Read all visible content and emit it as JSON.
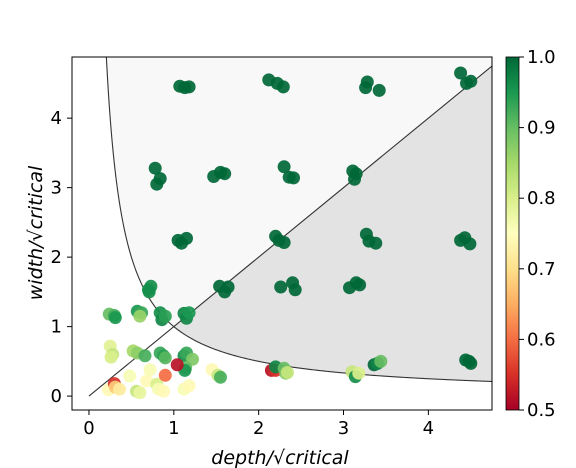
{
  "chart_data": {
    "type": "scatter",
    "title": "",
    "xlabel": "depth/√critical",
    "ylabel": "width/√critical",
    "xlim": [
      -0.2,
      4.75
    ],
    "ylim": [
      -0.2,
      4.88
    ],
    "xticks": [
      0,
      1,
      2,
      3,
      4
    ],
    "yticks": [
      0,
      1,
      2,
      3,
      4
    ],
    "grid": false,
    "colorbar": {
      "colormap": "RdYlGn",
      "range": [
        0.5,
        1.0
      ],
      "ticks": [
        "0.5",
        "0.6",
        "0.7",
        "0.8",
        "0.9",
        "1.0"
      ]
    },
    "reference_curves": [
      {
        "kind": "line",
        "equation": "y = x",
        "color": "#333333"
      },
      {
        "kind": "hyperbola",
        "equation": "y = 1 / x",
        "color": "#333333"
      }
    ],
    "shaded_regions": [
      {
        "region": "above y = 1/x and above y = x",
        "color": "#f8f8f8"
      },
      {
        "region": "above y = 1/x and below y = x",
        "color": "#e3e3e3"
      }
    ],
    "points": [
      {
        "x": 1.07,
        "y": 4.46,
        "v": 1.0
      },
      {
        "x": 1.13,
        "y": 4.44,
        "v": 1.0
      },
      {
        "x": 1.18,
        "y": 4.45,
        "v": 1.0
      },
      {
        "x": 2.12,
        "y": 4.55,
        "v": 1.0
      },
      {
        "x": 2.22,
        "y": 4.5,
        "v": 1.0
      },
      {
        "x": 2.29,
        "y": 4.45,
        "v": 1.0
      },
      {
        "x": 3.28,
        "y": 4.52,
        "v": 1.0
      },
      {
        "x": 3.26,
        "y": 4.44,
        "v": 1.0
      },
      {
        "x": 3.42,
        "y": 4.4,
        "v": 1.0
      },
      {
        "x": 4.38,
        "y": 4.65,
        "v": 1.0
      },
      {
        "x": 4.45,
        "y": 4.5,
        "v": 1.0
      },
      {
        "x": 4.5,
        "y": 4.53,
        "v": 1.0
      },
      {
        "x": 0.78,
        "y": 3.28,
        "v": 1.0
      },
      {
        "x": 0.8,
        "y": 3.05,
        "v": 1.0
      },
      {
        "x": 0.84,
        "y": 3.13,
        "v": 1.0
      },
      {
        "x": 1.47,
        "y": 3.16,
        "v": 1.0
      },
      {
        "x": 1.55,
        "y": 3.22,
        "v": 1.0
      },
      {
        "x": 1.6,
        "y": 3.2,
        "v": 1.0
      },
      {
        "x": 2.3,
        "y": 3.3,
        "v": 1.0
      },
      {
        "x": 2.36,
        "y": 3.15,
        "v": 1.0
      },
      {
        "x": 2.41,
        "y": 3.14,
        "v": 1.0
      },
      {
        "x": 3.11,
        "y": 3.24,
        "v": 1.0
      },
      {
        "x": 3.15,
        "y": 3.2,
        "v": 1.0
      },
      {
        "x": 3.13,
        "y": 3.12,
        "v": 1.0
      },
      {
        "x": 1.05,
        "y": 2.24,
        "v": 1.0
      },
      {
        "x": 1.09,
        "y": 2.2,
        "v": 1.0
      },
      {
        "x": 1.15,
        "y": 2.27,
        "v": 1.0
      },
      {
        "x": 2.2,
        "y": 2.3,
        "v": 1.0
      },
      {
        "x": 2.24,
        "y": 2.24,
        "v": 1.0
      },
      {
        "x": 2.3,
        "y": 2.21,
        "v": 1.0
      },
      {
        "x": 3.27,
        "y": 2.33,
        "v": 1.0
      },
      {
        "x": 3.3,
        "y": 2.23,
        "v": 1.0
      },
      {
        "x": 3.38,
        "y": 2.2,
        "v": 1.0
      },
      {
        "x": 4.38,
        "y": 2.24,
        "v": 1.0
      },
      {
        "x": 4.43,
        "y": 2.28,
        "v": 1.0
      },
      {
        "x": 4.49,
        "y": 2.19,
        "v": 1.0
      },
      {
        "x": 0.7,
        "y": 1.53,
        "v": 0.96
      },
      {
        "x": 0.73,
        "y": 1.58,
        "v": 0.96
      },
      {
        "x": 0.71,
        "y": 1.5,
        "v": 0.96
      },
      {
        "x": 1.54,
        "y": 1.58,
        "v": 1.0
      },
      {
        "x": 1.6,
        "y": 1.5,
        "v": 1.0
      },
      {
        "x": 1.64,
        "y": 1.57,
        "v": 1.0
      },
      {
        "x": 2.26,
        "y": 1.57,
        "v": 1.0
      },
      {
        "x": 2.4,
        "y": 1.63,
        "v": 1.0
      },
      {
        "x": 2.43,
        "y": 1.53,
        "v": 1.0
      },
      {
        "x": 3.07,
        "y": 1.56,
        "v": 1.0
      },
      {
        "x": 3.15,
        "y": 1.63,
        "v": 1.0
      },
      {
        "x": 3.19,
        "y": 1.6,
        "v": 1.0
      },
      {
        "x": 0.24,
        "y": 1.18,
        "v": 0.9
      },
      {
        "x": 0.3,
        "y": 1.16,
        "v": 0.92
      },
      {
        "x": 0.31,
        "y": 1.13,
        "v": 0.95
      },
      {
        "x": 0.57,
        "y": 1.22,
        "v": 0.95
      },
      {
        "x": 0.62,
        "y": 1.2,
        "v": 0.93
      },
      {
        "x": 0.6,
        "y": 1.15,
        "v": 0.86
      },
      {
        "x": 0.84,
        "y": 1.2,
        "v": 0.96
      },
      {
        "x": 0.86,
        "y": 1.1,
        "v": 0.97
      },
      {
        "x": 0.9,
        "y": 1.15,
        "v": 0.94
      },
      {
        "x": 1.12,
        "y": 1.19,
        "v": 0.97
      },
      {
        "x": 1.15,
        "y": 1.12,
        "v": 0.97
      },
      {
        "x": 1.18,
        "y": 1.2,
        "v": 0.95
      },
      {
        "x": 0.25,
        "y": 0.72,
        "v": 0.79
      },
      {
        "x": 0.28,
        "y": 0.6,
        "v": 0.82
      },
      {
        "x": 0.26,
        "y": 0.56,
        "v": 0.8
      },
      {
        "x": 0.52,
        "y": 0.65,
        "v": 0.85
      },
      {
        "x": 0.57,
        "y": 0.62,
        "v": 0.87
      },
      {
        "x": 0.66,
        "y": 0.58,
        "v": 0.92
      },
      {
        "x": 0.84,
        "y": 0.62,
        "v": 0.93
      },
      {
        "x": 0.88,
        "y": 0.58,
        "v": 0.94
      },
      {
        "x": 0.9,
        "y": 0.55,
        "v": 0.91
      },
      {
        "x": 1.12,
        "y": 0.58,
        "v": 0.96
      },
      {
        "x": 1.15,
        "y": 0.62,
        "v": 0.93
      },
      {
        "x": 1.22,
        "y": 0.53,
        "v": 0.88
      },
      {
        "x": 1.14,
        "y": 0.41,
        "v": 0.9
      },
      {
        "x": 1.13,
        "y": 0.37,
        "v": 0.95
      },
      {
        "x": 1.04,
        "y": 0.45,
        "v": 0.52
      },
      {
        "x": 0.23,
        "y": 0.09,
        "v": 0.74
      },
      {
        "x": 0.3,
        "y": 0.18,
        "v": 0.55
      },
      {
        "x": 0.31,
        "y": 0.13,
        "v": 0.68
      },
      {
        "x": 0.36,
        "y": 0.1,
        "v": 0.72
      },
      {
        "x": 0.48,
        "y": 0.29,
        "v": 0.76
      },
      {
        "x": 0.56,
        "y": 0.07,
        "v": 0.82
      },
      {
        "x": 0.6,
        "y": 0.05,
        "v": 0.78
      },
      {
        "x": 0.68,
        "y": 0.22,
        "v": 0.74
      },
      {
        "x": 0.72,
        "y": 0.38,
        "v": 0.76
      },
      {
        "x": 0.8,
        "y": 0.17,
        "v": 0.8
      },
      {
        "x": 0.82,
        "y": 0.1,
        "v": 0.76
      },
      {
        "x": 0.9,
        "y": 0.3,
        "v": 0.6
      },
      {
        "x": 0.88,
        "y": 0.07,
        "v": 0.74
      },
      {
        "x": 1.12,
        "y": 0.1,
        "v": 0.76
      },
      {
        "x": 1.18,
        "y": 0.15,
        "v": 0.74
      },
      {
        "x": 1.45,
        "y": 0.38,
        "v": 0.74
      },
      {
        "x": 1.52,
        "y": 0.3,
        "v": 0.82
      },
      {
        "x": 1.55,
        "y": 0.27,
        "v": 0.92
      },
      {
        "x": 2.15,
        "y": 0.37,
        "v": 0.52
      },
      {
        "x": 2.2,
        "y": 0.37,
        "v": 0.55
      },
      {
        "x": 2.2,
        "y": 0.42,
        "v": 0.97
      },
      {
        "x": 2.3,
        "y": 0.4,
        "v": 0.9
      },
      {
        "x": 2.32,
        "y": 0.33,
        "v": 0.88
      },
      {
        "x": 2.34,
        "y": 0.34,
        "v": 0.82
      },
      {
        "x": 3.1,
        "y": 0.35,
        "v": 0.82
      },
      {
        "x": 3.14,
        "y": 0.28,
        "v": 0.96
      },
      {
        "x": 3.18,
        "y": 0.33,
        "v": 0.8
      },
      {
        "x": 3.36,
        "y": 0.45,
        "v": 1.0
      },
      {
        "x": 3.4,
        "y": 0.47,
        "v": 0.97
      },
      {
        "x": 3.44,
        "y": 0.5,
        "v": 0.9
      },
      {
        "x": 4.44,
        "y": 0.52,
        "v": 1.0
      },
      {
        "x": 4.48,
        "y": 0.5,
        "v": 1.0
      },
      {
        "x": 4.5,
        "y": 0.47,
        "v": 1.0
      }
    ]
  }
}
